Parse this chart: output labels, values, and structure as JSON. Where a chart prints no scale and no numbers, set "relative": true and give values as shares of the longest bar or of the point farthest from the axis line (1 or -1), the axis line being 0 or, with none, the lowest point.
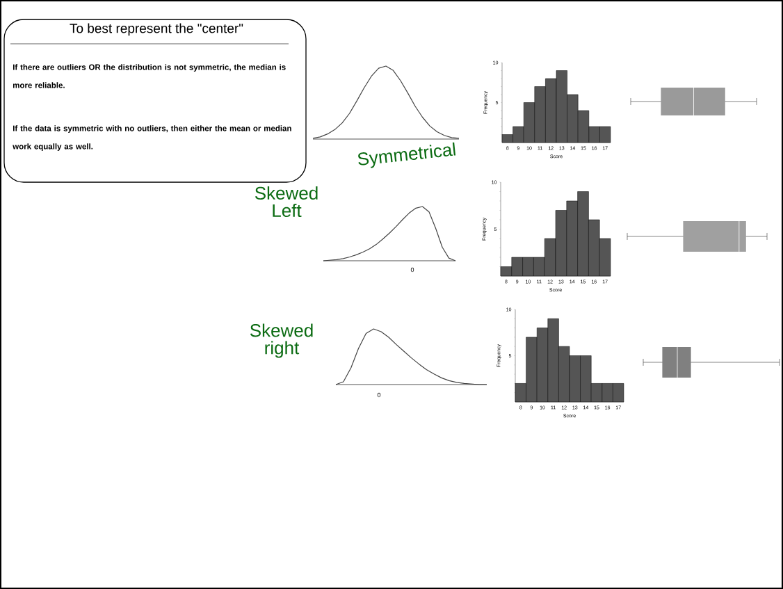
{
  "chart_data": [
    {
      "type": "other",
      "title": "To best represent the \"center\"",
      "annotations": [
        "If there are outliers OR the distribution is not symmetric, the median is more reliable.",
        "If the data is symmetric with no outliers, then either the mean or median work equally as well."
      ]
    },
    {
      "type": "line",
      "relative": true,
      "categories": [
        null,
        null,
        null,
        null,
        null,
        null,
        null,
        null,
        null,
        null,
        null,
        null,
        null,
        null,
        null,
        null,
        null,
        null,
        null,
        null,
        null
      ],
      "values": [
        0.01,
        0.03,
        0.07,
        0.13,
        0.22,
        0.35,
        0.52,
        0.7,
        0.86,
        0.97,
        1,
        0.94,
        0.8,
        0.63,
        0.45,
        0.3,
        0.18,
        0.1,
        0.05,
        0.02,
        0.01
      ],
      "color": "#444444",
      "annotations": [
        "Symmetrical"
      ]
    },
    {
      "type": "bar",
      "categories": [
        "8",
        "9",
        "10",
        "11",
        "12",
        "13",
        "14",
        "15",
        "16",
        "17"
      ],
      "values": [
        1,
        2,
        5,
        7,
        8,
        9,
        6,
        4,
        2,
        2
      ],
      "color": "#555555",
      "ylim": [
        0,
        10
      ],
      "yticks": [
        {
          "value": 1,
          "label": null
        },
        {
          "value": 2,
          "label": null
        },
        {
          "value": 3,
          "label": null
        },
        {
          "value": 4,
          "label": null
        },
        5,
        {
          "value": 6,
          "label": null
        },
        {
          "value": 7,
          "label": null
        },
        {
          "value": 8,
          "label": null
        },
        {
          "value": 9,
          "label": null
        },
        10
      ],
      "xlabel": "Score",
      "ylabel": "Frequency"
    },
    {
      "type": "other"
    },
    {
      "type": "line",
      "relative": true,
      "categories": [
        null,
        null,
        null,
        null,
        null,
        null,
        null,
        null,
        null,
        null,
        null,
        null,
        null,
        null,
        null,
        null,
        null,
        null,
        null,
        null,
        null
      ],
      "values": [
        0,
        0.01,
        0.02,
        0.04,
        0.07,
        0.11,
        0.16,
        0.22,
        0.3,
        0.4,
        0.51,
        0.63,
        0.76,
        0.88,
        0.97,
        1,
        0.9,
        0.6,
        0.25,
        0.05,
        0
      ],
      "color": "#444444",
      "annotations": [
        "Skewed Left",
        "0"
      ]
    },
    {
      "type": "bar",
      "categories": [
        "8",
        "9",
        "10",
        "11",
        "12",
        "13",
        "14",
        "15",
        "16",
        "17"
      ],
      "values": [
        1,
        2,
        2,
        2,
        4,
        7,
        8,
        9,
        6,
        4
      ],
      "color": "#555555",
      "ylim": [
        0,
        10
      ],
      "yticks": [
        {
          "value": 1,
          "label": null
        },
        {
          "value": 2,
          "label": null
        },
        {
          "value": 3,
          "label": null
        },
        {
          "value": 4,
          "label": null
        },
        5,
        {
          "value": 6,
          "label": null
        },
        {
          "value": 7,
          "label": null
        },
        {
          "value": 8,
          "label": null
        },
        {
          "value": 9,
          "label": null
        },
        10
      ],
      "xlabel": "Score",
      "ylabel": "Frequency"
    },
    {
      "type": "other"
    },
    {
      "type": "line",
      "relative": true,
      "categories": [
        null,
        null,
        null,
        null,
        null,
        null,
        null,
        null,
        null,
        null,
        null,
        null,
        null,
        null,
        null,
        null,
        null,
        null,
        null,
        null,
        null
      ],
      "values": [
        0,
        0.05,
        0.3,
        0.65,
        0.92,
        1,
        0.95,
        0.85,
        0.72,
        0.6,
        0.48,
        0.37,
        0.27,
        0.19,
        0.12,
        0.07,
        0.04,
        0.02,
        0.01,
        0,
        0
      ],
      "color": "#444444",
      "annotations": [
        "Skewed right",
        "0"
      ]
    },
    {
      "type": "bar",
      "categories": [
        "8",
        "9",
        "10",
        "11",
        "12",
        "13",
        "14",
        "15",
        "16",
        "17"
      ],
      "values": [
        2,
        7,
        8,
        9,
        6,
        5,
        5,
        2,
        2,
        2
      ],
      "color": "#555555",
      "ylim": [
        0,
        10
      ],
      "yticks": [
        {
          "value": 1,
          "label": null
        },
        {
          "value": 2,
          "label": null
        },
        {
          "value": 3,
          "label": null
        },
        {
          "value": 4,
          "label": null
        },
        5,
        {
          "value": 6,
          "label": null
        },
        {
          "value": 7,
          "label": null
        },
        {
          "value": 8,
          "label": null
        },
        {
          "value": 9,
          "label": null
        },
        10
      ],
      "xlabel": "Score",
      "ylabel": "Frequency"
    },
    {
      "type": "other"
    }
  ]
}
